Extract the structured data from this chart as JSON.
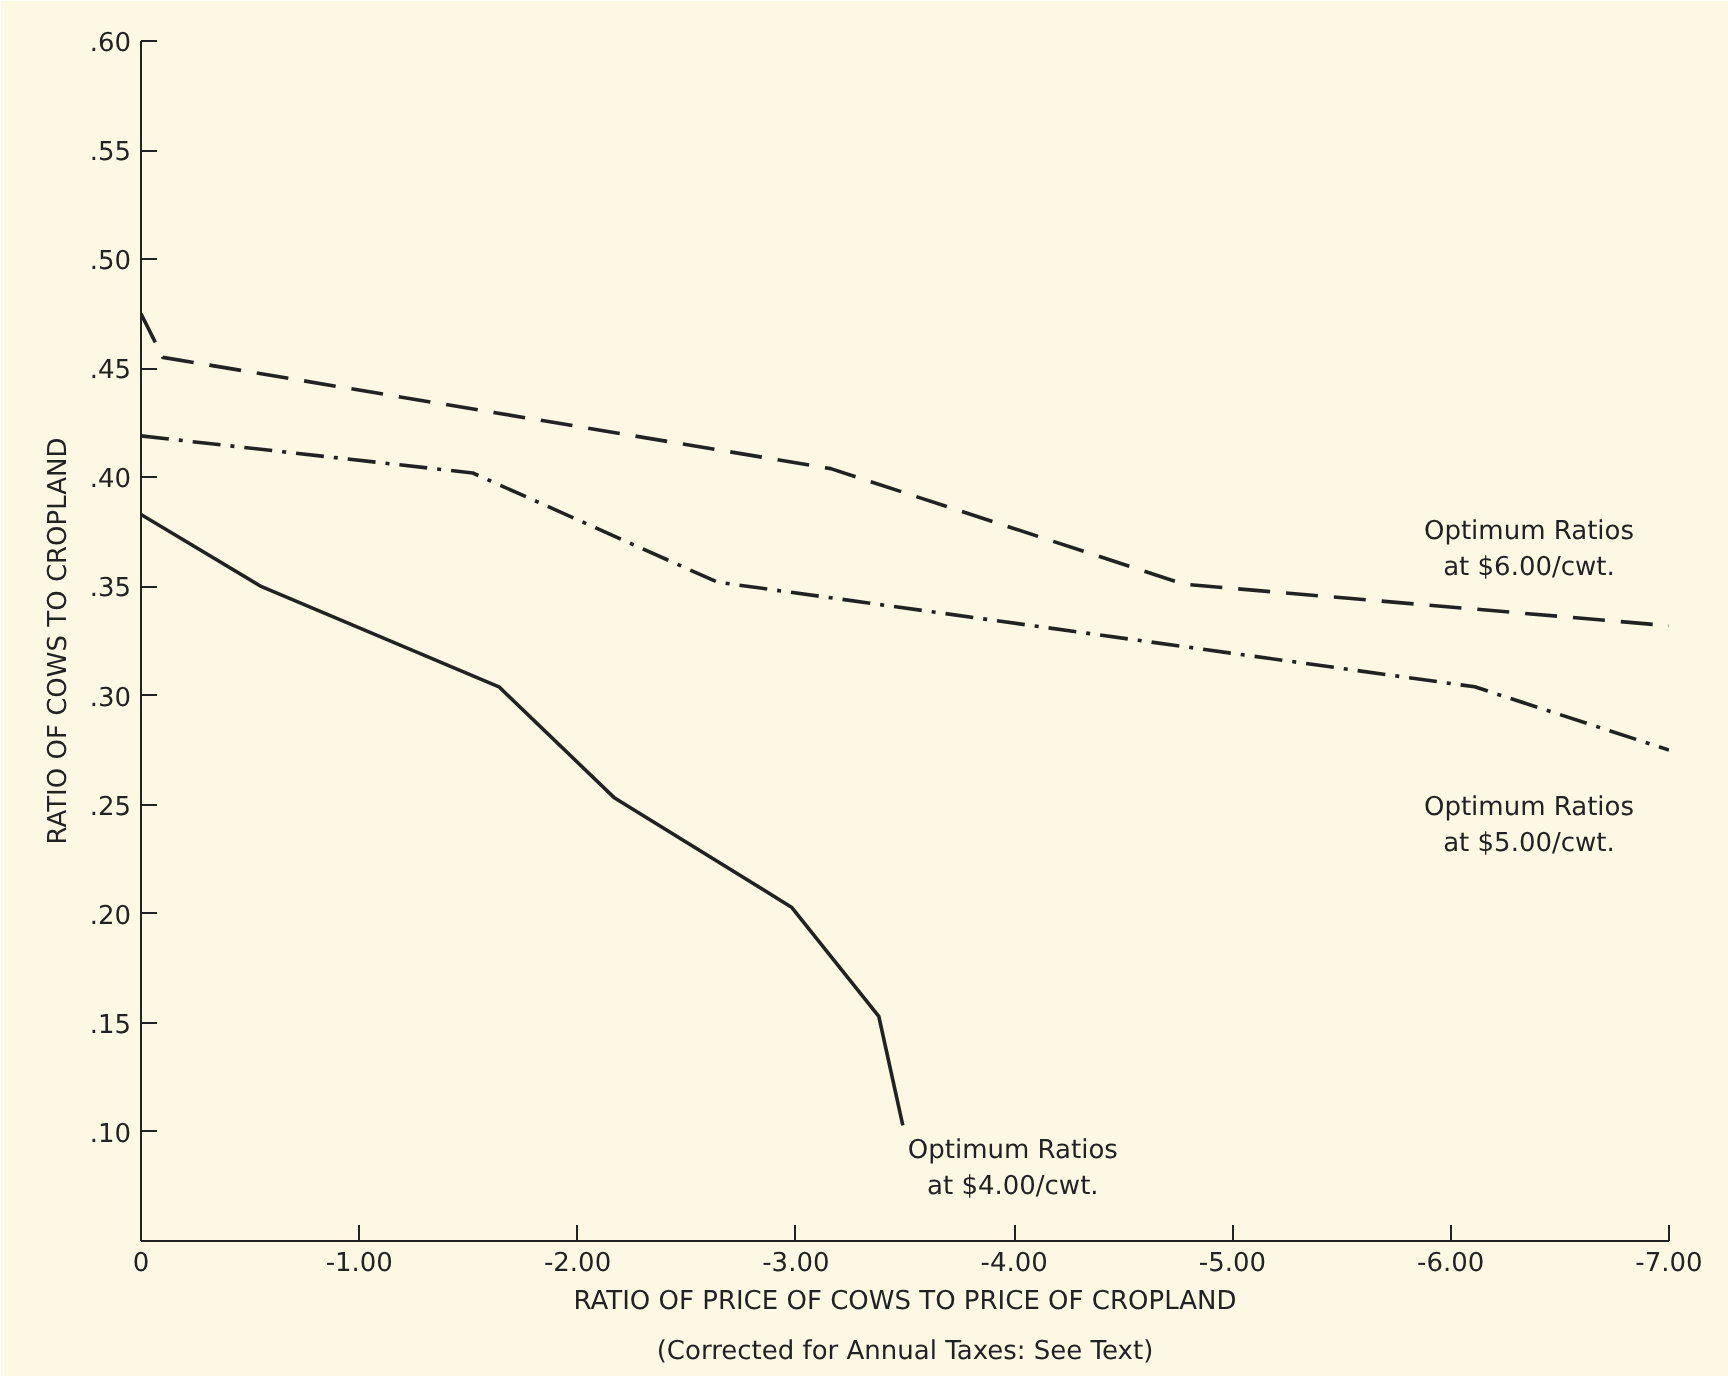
{
  "chart_data": {
    "type": "line",
    "xlabel": "RATIO OF PRICE OF COWS TO PRICE OF CROPLAND",
    "ylabel": "RATIO OF COWS TO CROPLAND",
    "xlim": [
      0,
      -7.0
    ],
    "ylim": [
      0.05,
      0.6
    ],
    "xticks": [
      0,
      {
        "value": -1,
        "label": "-1.00"
      },
      {
        "value": -2,
        "label": "-2.00"
      },
      {
        "value": -3,
        "label": "-3.00"
      },
      {
        "value": -4,
        "label": "-4.00"
      },
      {
        "value": -5,
        "label": "-5.00"
      },
      {
        "value": -6,
        "label": "-6.00"
      },
      {
        "value": -7,
        "label": "-7.00"
      }
    ],
    "yticks": [
      {
        "value": 0.1,
        "label": ".10"
      },
      {
        "value": 0.15,
        "label": ".15"
      },
      {
        "value": 0.2,
        "label": ".20"
      },
      {
        "value": 0.25,
        "label": ".25"
      },
      {
        "value": 0.3,
        "label": ".30"
      },
      {
        "value": 0.35,
        "label": ".35"
      },
      {
        "value": 0.4,
        "label": ".40"
      },
      {
        "value": 0.45,
        "label": ".45"
      },
      {
        "value": 0.5,
        "label": ".50"
      },
      {
        "value": 0.55,
        "label": ".55"
      },
      {
        "value": 0.6,
        "label": ".60"
      }
    ],
    "series": [
      {
        "name": "Optimum Ratios\nat $4.00/cwt.",
        "color": "#222222",
        "line_style": "solid",
        "x": [
          0,
          -0.55,
          -1.64,
          -2.17,
          -2.98,
          -3.38,
          -3.49
        ],
        "values": [
          0.383,
          0.35,
          0.304,
          0.253,
          0.203,
          0.153,
          0.103
        ]
      },
      {
        "name": "Optimum Ratios\nat $6.00/cwt.",
        "color": "#222222",
        "line_style": "dashed",
        "x": [
          0,
          -0.1,
          -3.16,
          -4.78,
          -7.0
        ],
        "values": [
          0.475,
          0.455,
          0.404,
          0.351,
          0.332
        ]
      },
      {
        "name": "Optimum Ratios\nat $5.00/cwt.",
        "color": "#222222",
        "line_style": "dashdot",
        "x": [
          0,
          -1.52,
          -2.64,
          -6.11,
          -7.0
        ],
        "values": [
          0.419,
          0.402,
          0.352,
          0.304,
          0.275
        ]
      }
    ],
    "annotations": [
      "(Corrected for Annual Taxes: See Text)"
    ],
    "grid": false
  }
}
